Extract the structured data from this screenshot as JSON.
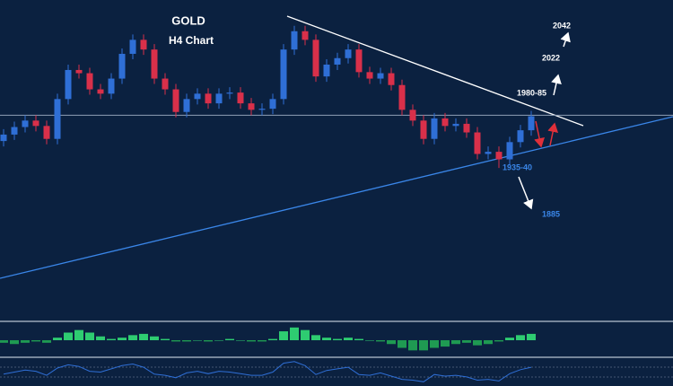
{
  "chart_data": [
    {
      "type": "candlestick",
      "title": "GOLD",
      "subtitle": "H4 Chart",
      "up_color": "#2f6fd6",
      "down_color": "#d9304a",
      "ylim": [
        1793,
        2089
      ],
      "hline": 1982,
      "annotations": [
        "1980-85",
        "2022",
        "2042",
        "1935-40",
        "1885"
      ],
      "open": [
        1958,
        1964,
        1971,
        1977,
        1972,
        1960,
        1997,
        2024,
        2021,
        2006,
        2002,
        2016,
        2039,
        2052,
        2043,
        2016,
        2006,
        1985,
        1997,
        2002,
        1993,
        2002,
        2003,
        1993,
        1987,
        1988,
        1997,
        2043,
        2060,
        2052,
        2018,
        2029,
        2035,
        2043,
        2022,
        2016,
        2021,
        2010,
        1987,
        1977,
        1960,
        1979,
        1972,
        1974,
        1966,
        1946,
        1948,
        1941,
        1957,
        1968
      ],
      "high": [
        1969,
        1976,
        1982,
        1982,
        1977,
        2002,
        2029,
        2029,
        2026,
        2011,
        2021,
        2044,
        2057,
        2057,
        2048,
        2021,
        2011,
        2002,
        2007,
        2007,
        2007,
        2008,
        2008,
        1998,
        1993,
        2002,
        2048,
        2065,
        2065,
        2057,
        2034,
        2040,
        2048,
        2048,
        2027,
        2026,
        2026,
        2015,
        1992,
        1982,
        1984,
        1984,
        1979,
        1979,
        1971,
        1953,
        1953,
        1962,
        1973,
        1986
      ],
      "low": [
        1953,
        1959,
        1966,
        1967,
        1955,
        1955,
        1992,
        2016,
        2001,
        1997,
        1997,
        2011,
        2034,
        2038,
        2011,
        2001,
        1980,
        1980,
        1992,
        1988,
        1988,
        1997,
        1988,
        1982,
        1982,
        1983,
        1992,
        2038,
        2047,
        2013,
        2013,
        2024,
        2030,
        2017,
        2011,
        2011,
        2005,
        1982,
        1972,
        1955,
        1955,
        1967,
        1967,
        1961,
        1941,
        1941,
        1933,
        1936,
        1952,
        1963
      ],
      "close": [
        1964,
        1971,
        1977,
        1972,
        1960,
        1997,
        2024,
        2021,
        2006,
        2002,
        2016,
        2039,
        2052,
        2043,
        2016,
        2006,
        1985,
        1997,
        2002,
        1993,
        2002,
        2003,
        1993,
        1987,
        1988,
        1997,
        2043,
        2060,
        2052,
        2018,
        2029,
        2035,
        2043,
        2022,
        2016,
        2021,
        2010,
        1987,
        1977,
        1960,
        1979,
        1972,
        1974,
        1966,
        1946,
        1948,
        1941,
        1957,
        1968,
        1981
      ]
    },
    {
      "type": "bar",
      "color": "#2ecc71",
      "neg_color": "#1f9a52",
      "ylim": [
        -12,
        12
      ],
      "values": [
        -2,
        -3,
        -2,
        -1,
        -2,
        2,
        6,
        8,
        6,
        3,
        1,
        2,
        4,
        5,
        3,
        1,
        -1,
        -1,
        0,
        -1,
        0,
        1,
        0,
        -1,
        -1,
        1,
        7,
        10,
        8,
        4,
        2,
        1,
        2,
        1,
        0,
        -1,
        -3,
        -6,
        -8,
        -8,
        -6,
        -5,
        -3,
        -2,
        -4,
        -3,
        -1,
        2,
        4,
        5
      ]
    },
    {
      "type": "line",
      "color": "#2f6fd6",
      "ylim": [
        20,
        80
      ],
      "values": [
        45,
        50,
        55,
        52,
        42,
        60,
        68,
        64,
        52,
        50,
        58,
        66,
        70,
        62,
        45,
        42,
        36,
        48,
        52,
        46,
        52,
        50,
        46,
        42,
        42,
        50,
        72,
        76,
        66,
        44,
        54,
        58,
        62,
        44,
        42,
        48,
        40,
        32,
        30,
        26,
        44,
        40,
        42,
        38,
        30,
        32,
        28,
        46,
        56,
        62
      ]
    }
  ]
}
